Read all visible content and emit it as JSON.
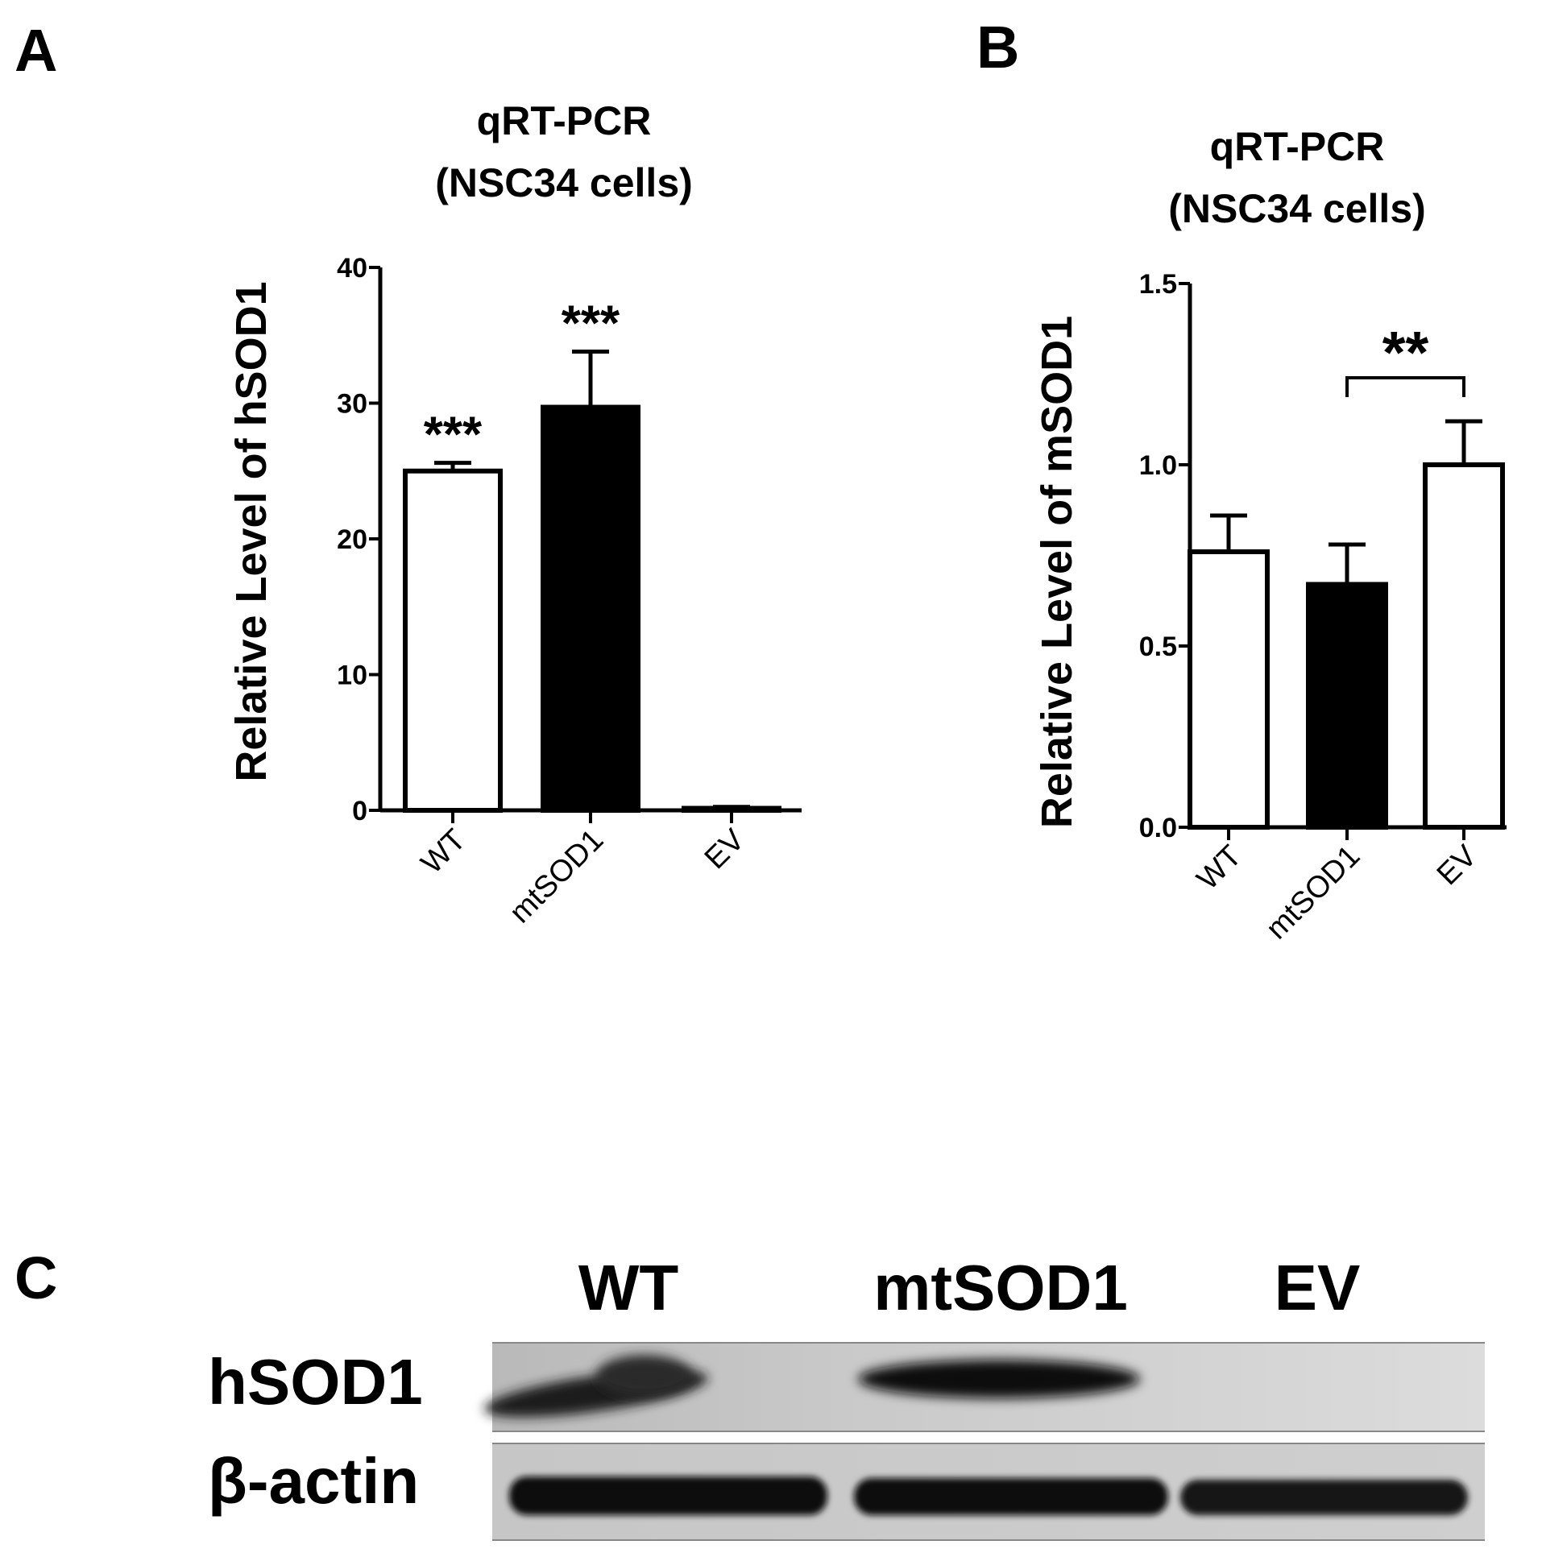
{
  "figure": {
    "panels": [
      {
        "letter": "A",
        "title_line1": "qRT-PCR",
        "title_line2": "(NSC34 cells)",
        "ylabel": "Relative Level of hSOD1"
      },
      {
        "letter": "B",
        "title_line1": "qRT-PCR",
        "title_line2": "(NSC34 cells)",
        "ylabel": "Relative Level of mSOD1"
      },
      {
        "letter": "C"
      }
    ]
  },
  "chart_data": [
    {
      "type": "bar",
      "title": "qRT-PCR (NSC34 cells)",
      "xlabel": "",
      "ylabel": "Relative Level of hSOD1",
      "categories": [
        "WT",
        "mtSOD1",
        "EV"
      ],
      "values": [
        25.0,
        29.7,
        0.15
      ],
      "errors": [
        0.6,
        4.1,
        0.1
      ],
      "fills": [
        "#ffffff",
        "#000000",
        "#ffffff"
      ],
      "ylim": [
        0,
        40
      ],
      "yticks": [
        0,
        10,
        20,
        30,
        40
      ],
      "ytick_labels": [
        "0",
        "10",
        "20",
        "30",
        "40"
      ],
      "annotations": [
        "***",
        "***",
        ""
      ]
    },
    {
      "type": "bar",
      "title": "qRT-PCR (NSC34 cells)",
      "xlabel": "",
      "ylabel": "Relative Level of mSOD1",
      "categories": [
        "WT",
        "mtSOD1",
        "EV"
      ],
      "values": [
        0.76,
        0.67,
        1.0
      ],
      "errors": [
        0.1,
        0.11,
        0.12
      ],
      "fills": [
        "#ffffff",
        "#000000",
        "#ffffff"
      ],
      "ylim": [
        0,
        1.5
      ],
      "yticks": [
        0,
        0.5,
        1.0,
        1.5
      ],
      "ytick_labels": [
        "0.0",
        "0.5",
        "1.0",
        "1.5"
      ],
      "bracket": {
        "between": [
          "mtSOD1",
          "EV"
        ],
        "label": "**"
      }
    }
  ],
  "blot": {
    "lanes": [
      "WT",
      "mtSOD1",
      "EV"
    ],
    "rows": [
      "hSOD1",
      "β-actin"
    ]
  }
}
